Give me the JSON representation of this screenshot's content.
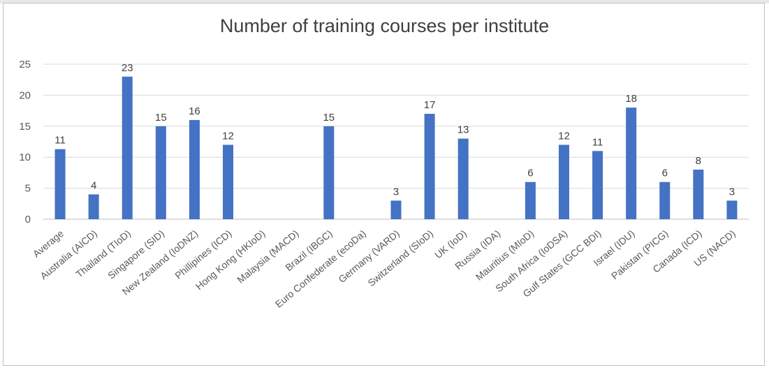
{
  "chart_data": {
    "type": "bar",
    "title": "Number of training courses per institute",
    "xlabel": "",
    "ylabel": "",
    "ylim": [
      0,
      25
    ],
    "yticks": [
      0,
      5,
      10,
      15,
      20,
      25
    ],
    "grid": true,
    "legend": "none",
    "bar_color": "#4472c4",
    "categories": [
      "Average",
      "Australia (AICD)",
      "Thailand (TIoD)",
      "Singapore (SID)",
      "New Zealand (IoDNZ)",
      "Phillipines (ICD)",
      "Hong Kong (HKIoD)",
      "Malaysia (MACD)",
      "Brazil (IBGC)",
      "Euro Confederate (ecoDa)",
      "Germany (VARD)",
      "Switzerland (SIoD)",
      "UK (IoD)",
      "Russia (IDA)",
      "Mauritius (MIoD)",
      "South Africa (IoDSA)",
      "Gulf States (GCC BDI)",
      "Israel (IDU)",
      "Pakistan (PICG)",
      "Canada (ICD)",
      "US (NACD)"
    ],
    "values": [
      11.3,
      4,
      23,
      15,
      16,
      12,
      null,
      null,
      15,
      null,
      3,
      17,
      13,
      null,
      6,
      12,
      11,
      18,
      6,
      8,
      3
    ],
    "data_labels": [
      "11",
      "4",
      "23",
      "15",
      "16",
      "12",
      "",
      "",
      "15",
      "",
      "3",
      "17",
      "13",
      "",
      "6",
      "12",
      "11",
      "18",
      "6",
      "8",
      "3"
    ]
  }
}
